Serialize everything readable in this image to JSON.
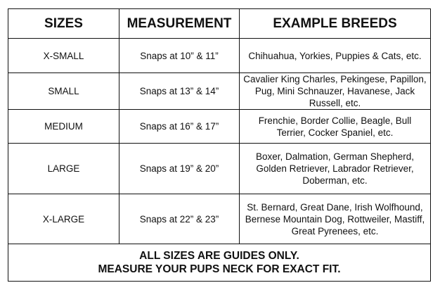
{
  "headers": [
    "SIZES",
    "MEASUREMENT",
    "EXAMPLE BREEDS"
  ],
  "rows": [
    {
      "size": "X-SMALL",
      "measurement": "Snaps at 10” & 11”",
      "breeds": "Chihuahua, Yorkies, Puppies & Cats, etc."
    },
    {
      "size": "SMALL",
      "measurement": "Snaps at 13” & 14”",
      "breeds": "Cavalier King Charles, Pekingese, Papillon, Pug, Mini Schnauzer, Havanese, Jack Russell, etc."
    },
    {
      "size": "MEDIUM",
      "measurement": "Snaps at 16” & 17”",
      "breeds": "Frenchie, Border Collie, Beagle, Bull Terrier, Cocker Spaniel, etc."
    },
    {
      "size": "LARGE",
      "measurement": "Snaps at 19” & 20”",
      "breeds": "Boxer, Dalmation, German Shepherd, Golden Retriever, Labrador Retriever, Doberman, etc."
    },
    {
      "size": "X-LARGE",
      "measurement": "Snaps at 22” & 23”",
      "breeds": "St. Bernard, Great Dane, Irish Wolfhound, Bernese Mountain Dog, Rottweiler, Mastiff, Great Pyrenees, etc."
    }
  ],
  "footer": {
    "line1": "ALL SIZES ARE GUIDES ONLY.",
    "line2": "MEASURE YOUR PUPS NECK FOR EXACT FIT."
  }
}
